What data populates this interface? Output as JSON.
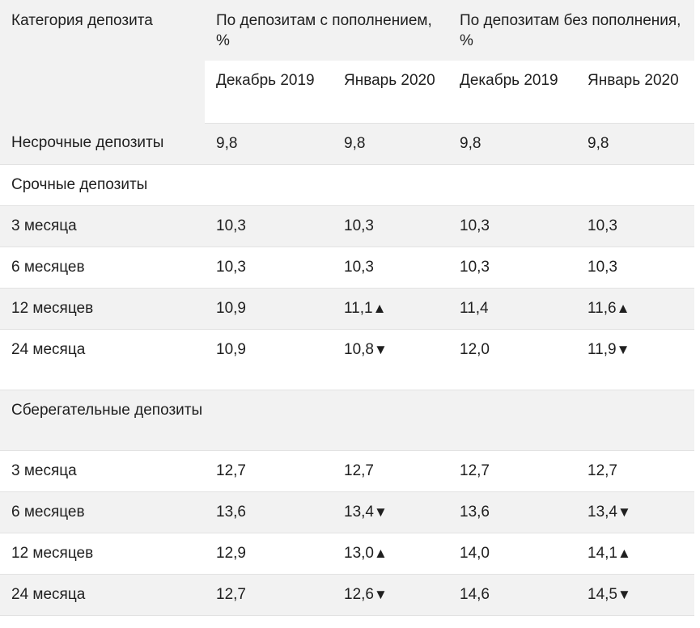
{
  "headers": {
    "category": "Категория депозита",
    "group_with": "По депозитам с пополнением, %",
    "group_without": "По депозитам без пополнения, %",
    "months": [
      "Декабрь 2019",
      "Январь 2020",
      "Декабрь 2019",
      "Январь 2020"
    ]
  },
  "rows": [
    {
      "label": "Несрочные депозиты",
      "values": [
        "9,8",
        "9,8",
        "9,8",
        "9,8"
      ],
      "arrows": [
        "",
        "",
        "",
        ""
      ]
    },
    {
      "label": "Срочные депозиты",
      "values": [
        "",
        "",
        "",
        ""
      ],
      "arrows": [
        "",
        "",
        "",
        ""
      ]
    },
    {
      "label": "3 месяца",
      "values": [
        "10,3",
        "10,3",
        "10,3",
        "10,3"
      ],
      "arrows": [
        "",
        "",
        "",
        ""
      ]
    },
    {
      "label": "6 месяцев",
      "values": [
        "10,3",
        "10,3",
        "10,3",
        "10,3"
      ],
      "arrows": [
        "",
        "",
        "",
        ""
      ]
    },
    {
      "label": "12 месяцев",
      "values": [
        "10,9",
        "11,1",
        "11,4",
        "11,6"
      ],
      "arrows": [
        "",
        "▲",
        "",
        "▲"
      ]
    },
    {
      "label": "24 месяца",
      "values": [
        "10,9",
        "10,8",
        "12,0",
        "11,9"
      ],
      "arrows": [
        "",
        "▼",
        "",
        "▼"
      ]
    },
    {
      "label": "Сберегательные депозиты",
      "values": [
        "",
        "",
        "",
        ""
      ],
      "arrows": [
        "",
        "",
        "",
        ""
      ]
    },
    {
      "label": "3 месяца",
      "values": [
        "12,7",
        "12,7",
        "12,7",
        "12,7"
      ],
      "arrows": [
        "",
        "",
        "",
        ""
      ]
    },
    {
      "label": "6 месяцев",
      "values": [
        "13,6",
        "13,4",
        "13,6",
        "13,4"
      ],
      "arrows": [
        "",
        "▼",
        "",
        "▼"
      ]
    },
    {
      "label": "12 месяцев",
      "values": [
        "12,9",
        "13,0",
        "14,0",
        "14,1"
      ],
      "arrows": [
        "",
        "▲",
        "",
        "▲"
      ]
    },
    {
      "label": "24 месяца",
      "values": [
        "12,7",
        "12,6",
        "14,6",
        "14,5"
      ],
      "arrows": [
        "",
        "▼",
        "",
        "▼"
      ]
    }
  ],
  "colors": {
    "row_gray": "#f2f2f2",
    "row_white": "#ffffff",
    "border": "#e2e2e2",
    "text": "#1f1f1f"
  }
}
